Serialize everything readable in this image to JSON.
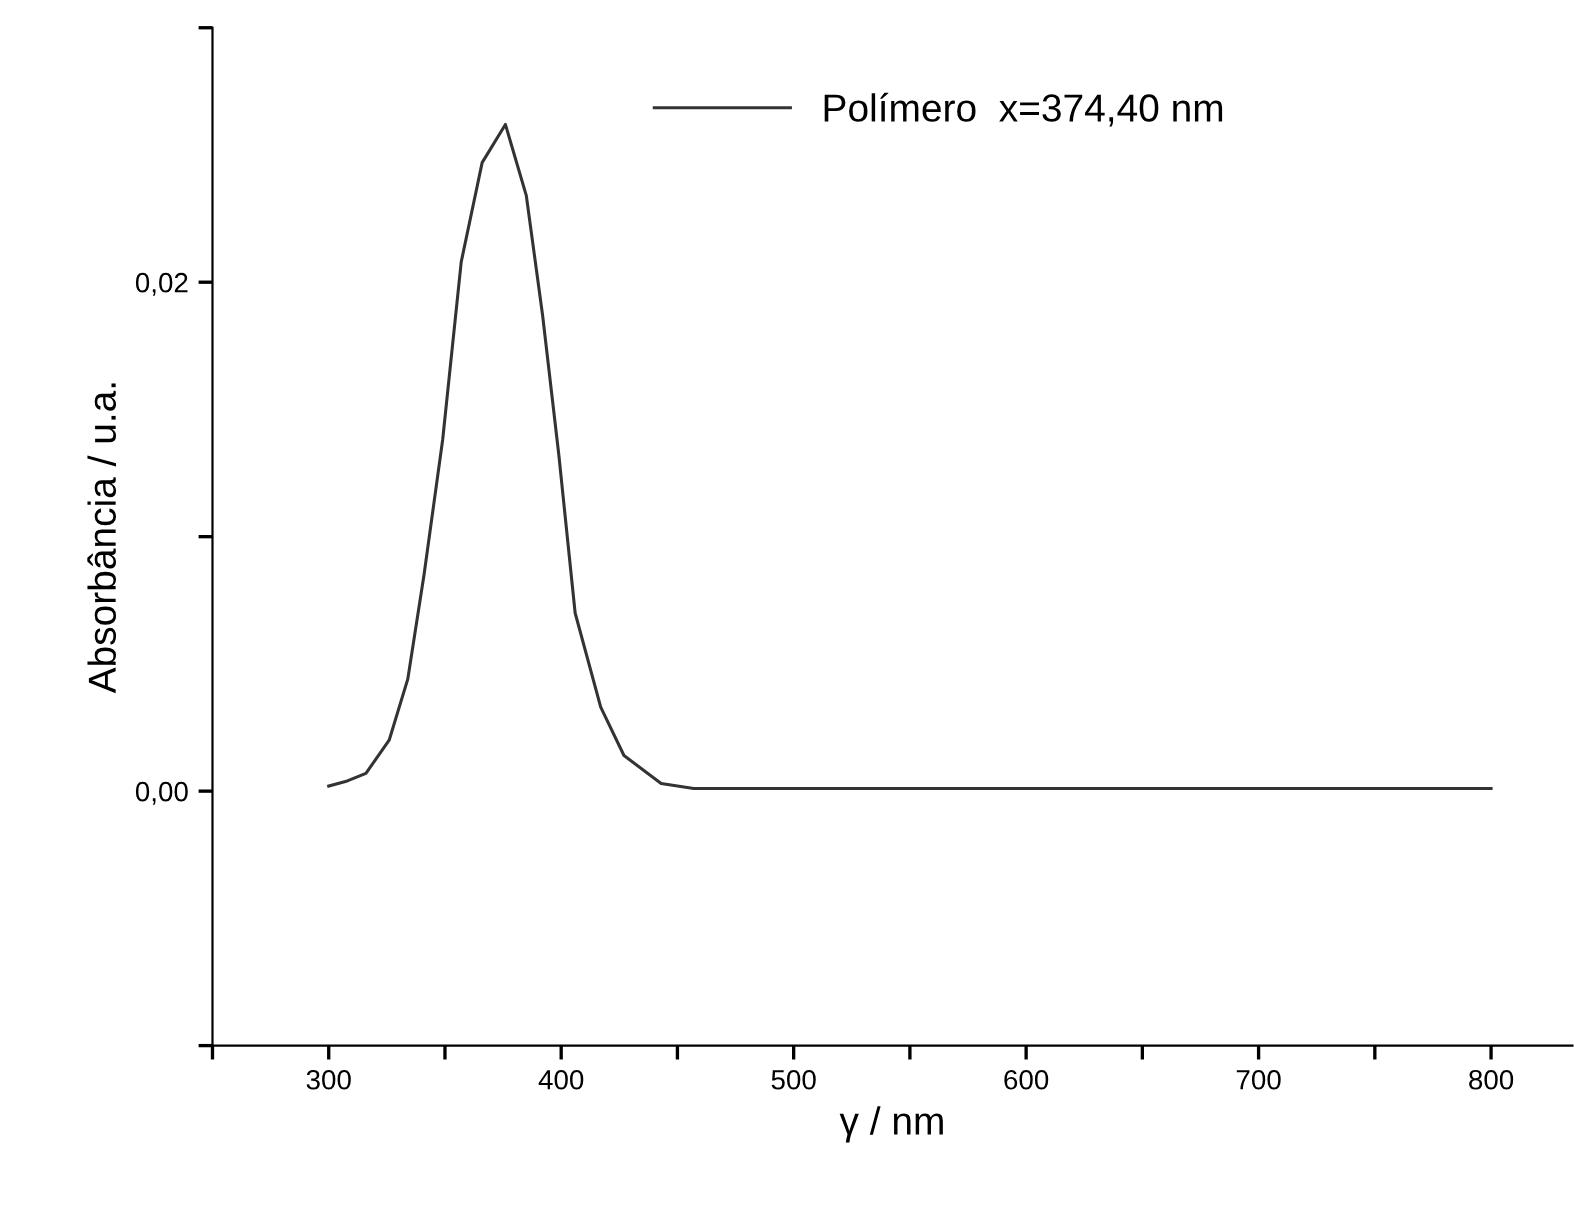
{
  "chart_data": {
    "type": "line",
    "xlabel": "γ / nm",
    "ylabel": "Absorbância / u.a.",
    "xlim": [
      250,
      835
    ],
    "ylim": [
      -0.01,
      0.03
    ],
    "xticks": [
      {
        "value": 250,
        "label": null
      },
      300,
      {
        "value": 350,
        "label": null
      },
      400,
      {
        "value": 450,
        "label": null
      },
      500,
      {
        "value": 550,
        "label": null
      },
      600,
      {
        "value": 650,
        "label": null
      },
      700,
      {
        "value": 750,
        "label": null
      },
      800
    ],
    "yticks": [
      {
        "value": -0.01,
        "label": null
      },
      {
        "value": 0,
        "label": "0,00"
      },
      {
        "value": 0.01,
        "label": null
      },
      {
        "value": 0.02,
        "label": "0,02"
      },
      {
        "value": 0.03,
        "label": null
      }
    ],
    "x": [
      300,
      308,
      316,
      326,
      334,
      341,
      349,
      357,
      366,
      376,
      385,
      392,
      399,
      406,
      417,
      427,
      443,
      457,
      500,
      600,
      700,
      800
    ],
    "series": [
      {
        "name": "Polímero  x=374,40 nm",
        "color": "#333333",
        "values": [
          0.0002,
          0.0004,
          0.0007,
          0.002,
          0.0044,
          0.0085,
          0.0138,
          0.0208,
          0.0247,
          0.0262,
          0.0234,
          0.0187,
          0.0132,
          0.007,
          0.0033,
          0.0014,
          0.0003,
          0.0001,
          0.0001,
          0.0001,
          0.0001,
          0.0001
        ]
      }
    ],
    "legend": "top right",
    "grid": false,
    "marker": "none",
    "line_style": "solid"
  }
}
